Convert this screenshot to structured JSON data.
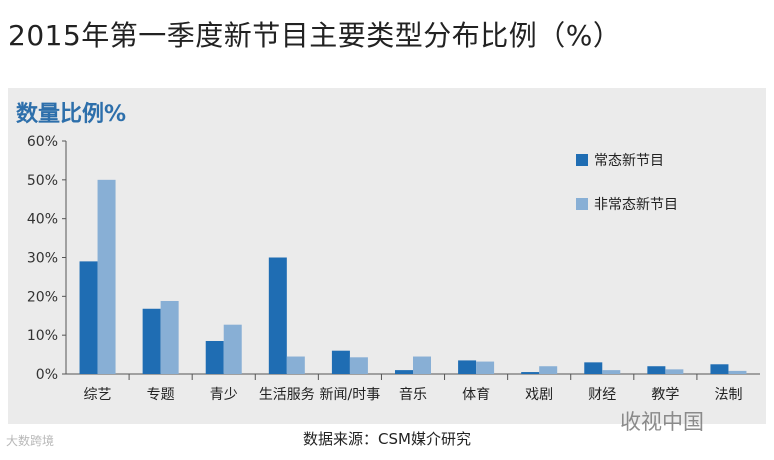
{
  "title": "2015年第一季度新节目主要类型分布比例（%）",
  "panel_heading": "数量比例%",
  "source": "数据来源：CSM媒介研究",
  "watermark_left": "大数跨境",
  "watermark_right": "收视中国",
  "colors": {
    "series1": "#1f6db3",
    "series2": "#88afd5",
    "heading": "#2d6fab",
    "panel_bg": "#ebebeb"
  },
  "chart_data": {
    "type": "bar",
    "ylim": [
      0,
      60
    ],
    "yticks": [
      "0%",
      "10%",
      "20%",
      "30%",
      "40%",
      "50%",
      "60%"
    ],
    "categories": [
      "综艺",
      "专题",
      "青少",
      "生活服务",
      "新闻/时事",
      "音乐",
      "体育",
      "戏剧",
      "财经",
      "教学",
      "法制"
    ],
    "series": [
      {
        "name": "常态新节目",
        "values": [
          29,
          16.8,
          8.5,
          30,
          6,
          1,
          3.5,
          0.5,
          3,
          2,
          2.5
        ]
      },
      {
        "name": "非常态新节目",
        "values": [
          50,
          18.8,
          12.7,
          4.5,
          4.3,
          4.5,
          3.2,
          2,
          1,
          1.2,
          0.8
        ]
      }
    ],
    "legend": "top-right"
  }
}
